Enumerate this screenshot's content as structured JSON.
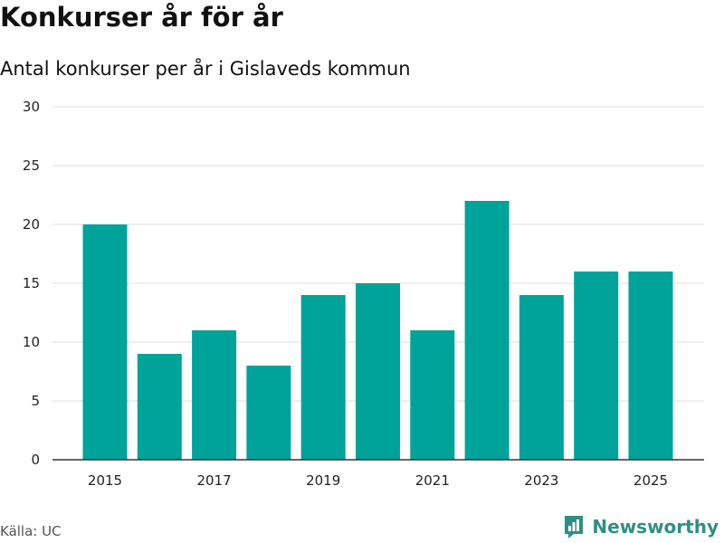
{
  "header": {
    "title": "Konkurser år för år",
    "subtitle": "Antal konkurser per år i Gislaveds kommun"
  },
  "chart_data": {
    "type": "bar",
    "title": "Konkurser år för år",
    "subtitle": "Antal konkurser per år i Gislaveds kommun",
    "xlabel": "",
    "ylabel": "",
    "categories": [
      "2015",
      "2016",
      "2017",
      "2018",
      "2019",
      "2020",
      "2021",
      "2022",
      "2023",
      "2024",
      "2025"
    ],
    "values": [
      20,
      9,
      11,
      8,
      14,
      15,
      11,
      22,
      14,
      16,
      16
    ],
    "x_tick_labels": [
      "2015",
      "2017",
      "2019",
      "2021",
      "2023",
      "2025"
    ],
    "y_ticks": [
      0,
      5,
      10,
      15,
      20,
      25,
      30
    ],
    "ylim": [
      0,
      30
    ],
    "grid": true,
    "legend": "none",
    "bar_color": "#00a39a"
  },
  "footer": {
    "source": "Källa: UC",
    "brand": "Newsworthy",
    "brand_icon": "newsworthy-logo-icon",
    "brand_color": "#2f8f84"
  }
}
